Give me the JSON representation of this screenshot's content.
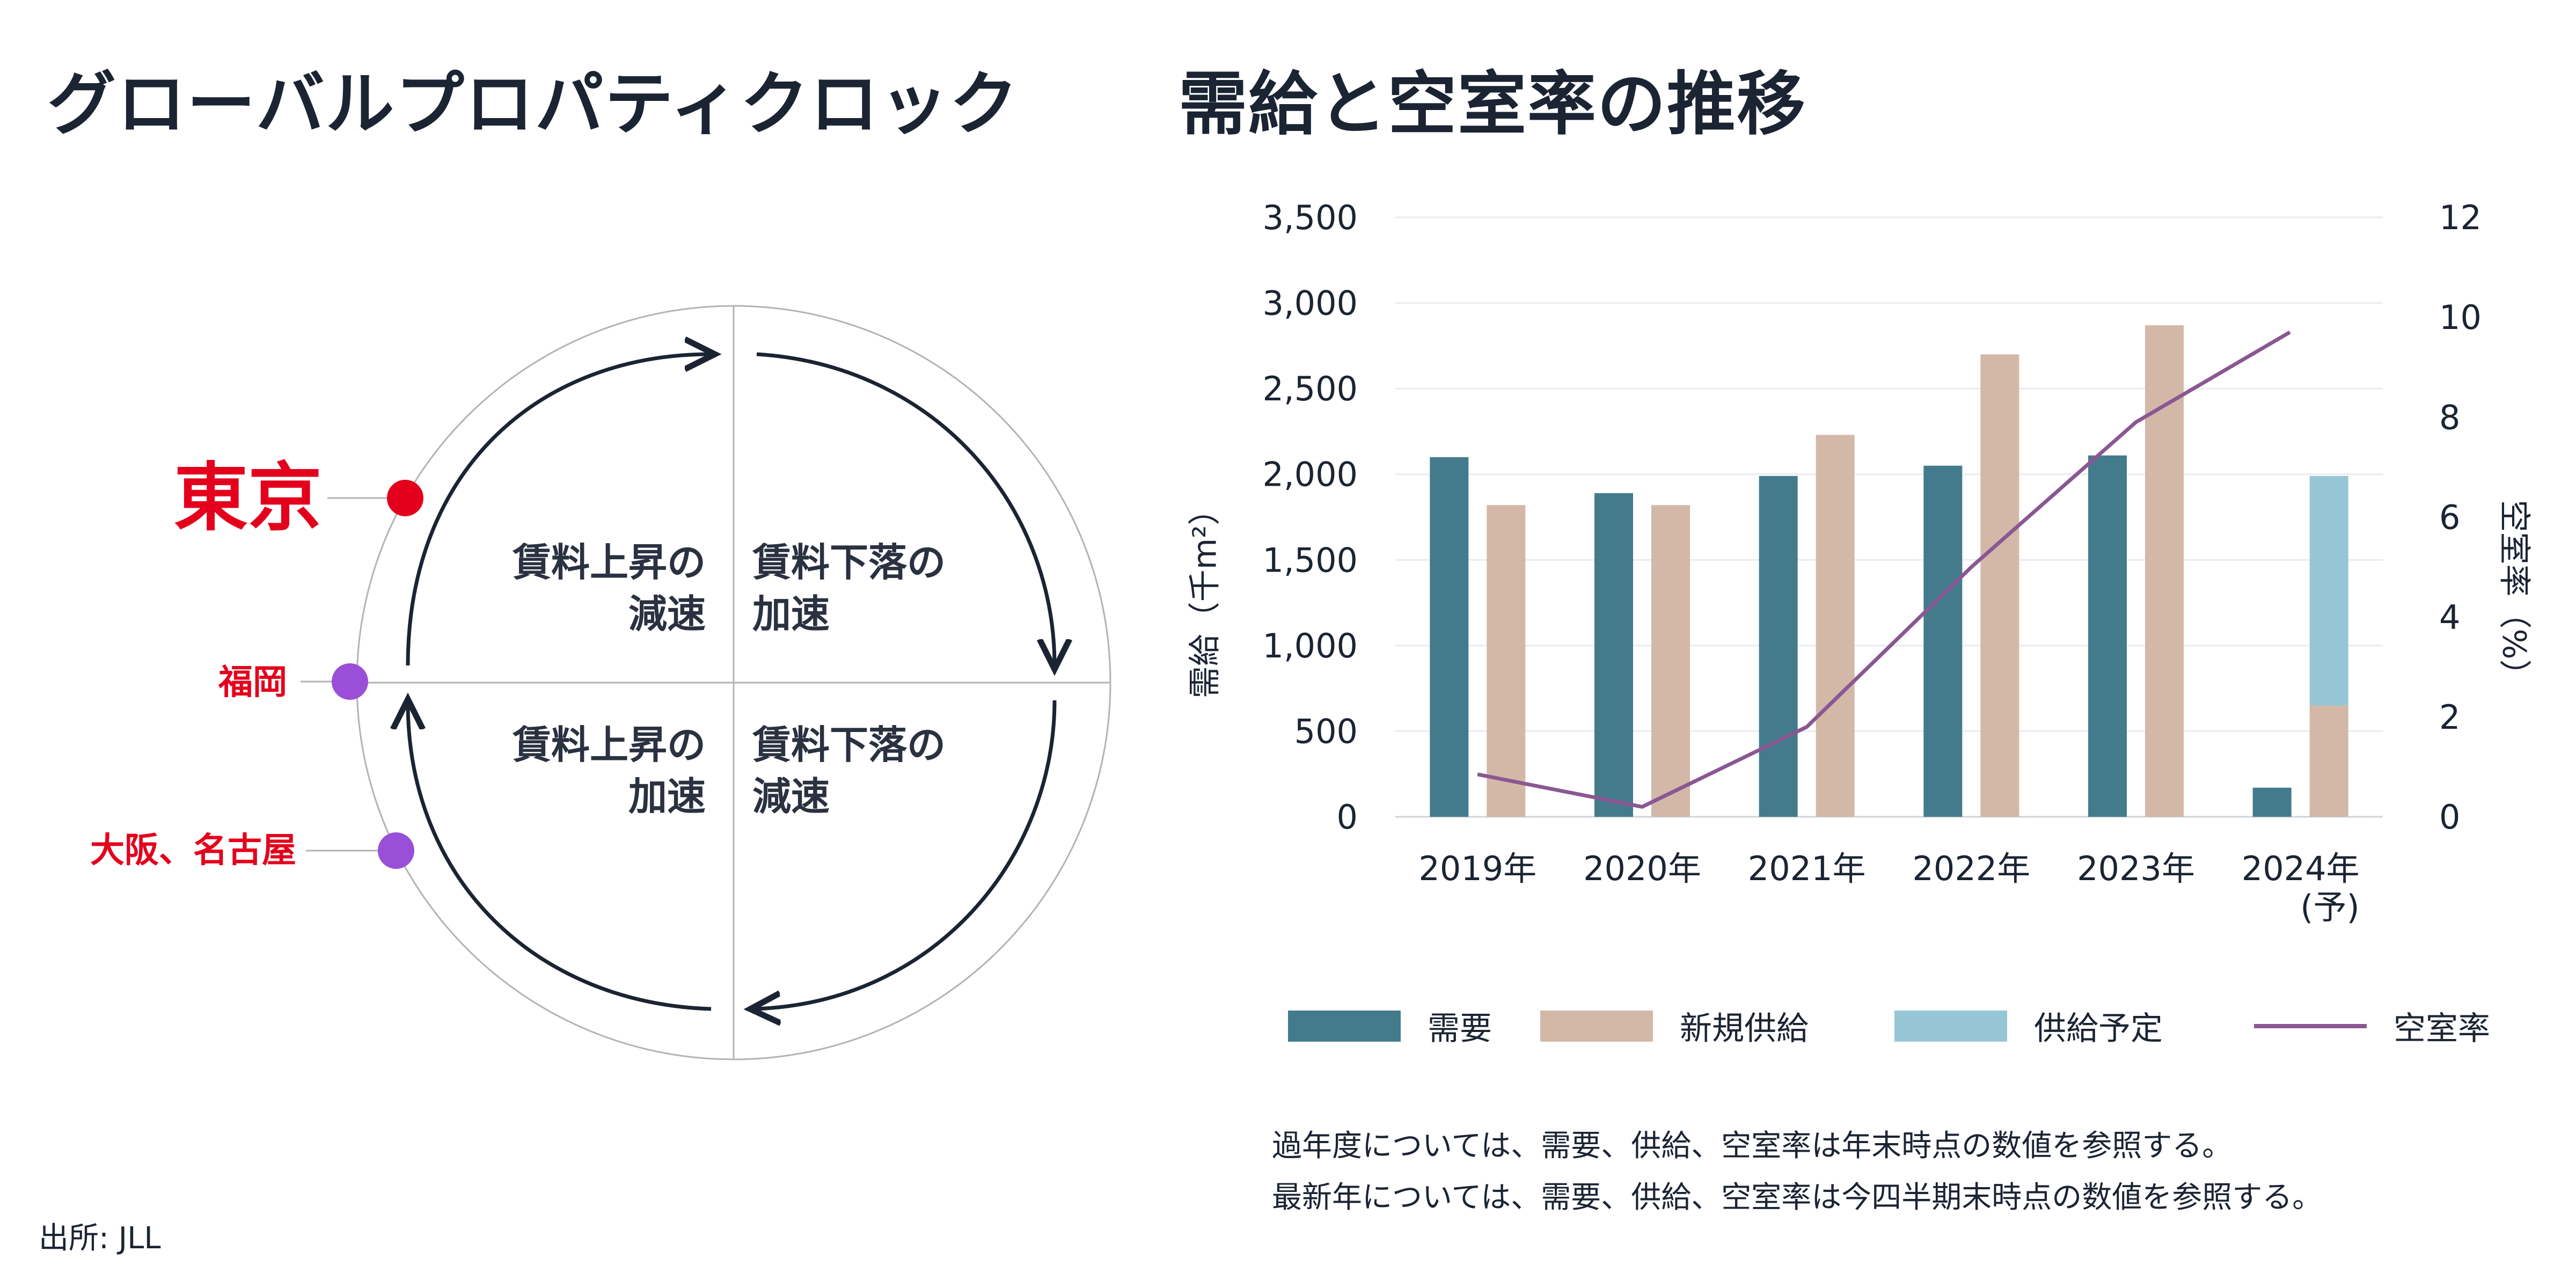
{
  "left": {
    "title": "グローバルプロパティクロック",
    "quadrants": {
      "top_left": [
        "賃料上昇の",
        "減速"
      ],
      "top_right": [
        "賃料下落の",
        "加速"
      ],
      "bottom_left": [
        "賃料上昇の",
        "加速"
      ],
      "bottom_right": [
        "賃料下落の",
        "減速"
      ]
    },
    "cities": [
      {
        "name": "東京",
        "color": "#e4001c"
      },
      {
        "name": "福岡",
        "color": "#9a4fd8"
      },
      {
        "name": "大阪、名古屋",
        "color": "#9a4fd8"
      }
    ],
    "source": "出所: JLL"
  },
  "right": {
    "title": "需給と空室率の推移",
    "notes": [
      "過年度については、需要、供給、空室率は年末時点の数値を参照する。",
      "最新年については、需要、供給、空室率は今四半期末時点の数値を参照する。"
    ]
  },
  "chart_data": {
    "type": "bar",
    "title": "需給と空室率の推移",
    "categories": [
      "2019年",
      "2020年",
      "2021年",
      "2022年",
      "2023年",
      "2024年\n(予)"
    ],
    "category_lines": [
      [
        "2019年"
      ],
      [
        "2020年"
      ],
      [
        "2021年"
      ],
      [
        "2022年"
      ],
      [
        "2023年"
      ],
      [
        "2024年",
        "(予)"
      ]
    ],
    "series": [
      {
        "name": "需要",
        "type": "bar",
        "axis": "left",
        "color": "#437b8d",
        "values": [
          2100,
          1890,
          1990,
          2050,
          2110,
          170
        ]
      },
      {
        "name": "新規供給",
        "type": "bar",
        "axis": "left",
        "color": "#d3b8a8",
        "values": [
          1820,
          1820,
          2230,
          2700,
          2870,
          650
        ]
      },
      {
        "name": "供給予定",
        "type": "bar",
        "axis": "left",
        "stack_on": "新規供給",
        "color": "#96c6d6",
        "values": [
          0,
          0,
          0,
          0,
          0,
          1340
        ]
      },
      {
        "name": "空室率",
        "type": "line",
        "axis": "right",
        "color": "#8a5793",
        "values": [
          0.85,
          0.2,
          1.8,
          5.0,
          7.9,
          9.7
        ]
      }
    ],
    "ylabel": "需給（千m²）",
    "ylim": [
      0,
      3500
    ],
    "yticks": [
      0,
      500,
      1000,
      1500,
      2000,
      2500,
      3000,
      3500
    ],
    "ytick_labels": [
      "0",
      "500",
      "1,000",
      "1,500",
      "2,000",
      "2,500",
      "3,000",
      "3,500"
    ],
    "y2label": "空室率（%）",
    "y2lim": [
      0,
      12
    ],
    "y2ticks": [
      0,
      2,
      4,
      6,
      8,
      10,
      12
    ],
    "y2tick_labels": [
      "0",
      "2",
      "4",
      "6",
      "8",
      "10",
      "12"
    ],
    "grid": true,
    "legend": [
      "需要",
      "新規供給",
      "供給予定",
      "空室率"
    ],
    "legend_position": "bottom"
  }
}
